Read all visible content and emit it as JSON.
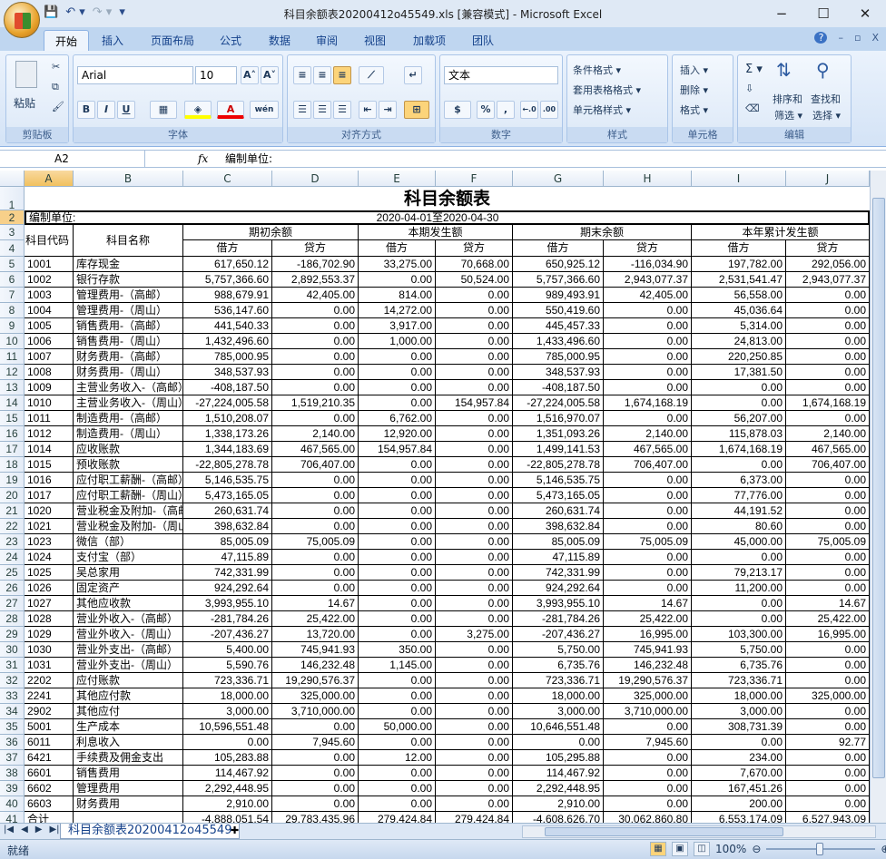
{
  "window": {
    "title": "科目余额表20200412o45549.xls  [兼容模式] - Microsoft Excel",
    "minimize": "−",
    "maximize": "☐",
    "close": "✕"
  },
  "qat": {
    "save": "💾",
    "undo": "↶ ▾",
    "redo": "↷ ▾",
    "customize": "▾"
  },
  "ribbon_tabs": [
    "开始",
    "插入",
    "页面布局",
    "公式",
    "数据",
    "审阅",
    "视图",
    "加载项",
    "团队"
  ],
  "ribbon_right": {
    "help": "?",
    "minimize": "–",
    "restore": "▫",
    "close": "X"
  },
  "ribbon": {
    "clipboard": {
      "label": "剪贴板",
      "paste": "粘贴"
    },
    "font": {
      "label": "字体",
      "name": "Arial",
      "size": "10",
      "bold": "B",
      "italic": "I",
      "underline": "U",
      "grow": "A˄",
      "shrink": "A˅",
      "font_color": "A",
      "phonetic": "wén"
    },
    "alignment": {
      "label": "对齐方式"
    },
    "number": {
      "label": "数字",
      "format": "文本",
      "percent": "%",
      "comma": ",",
      "inc_decimal": "←.0",
      "dec_decimal": ".00"
    },
    "styles": {
      "label": "样式",
      "conditional": "条件格式 ▾",
      "table": "套用表格格式 ▾",
      "cell": "单元格样式 ▾"
    },
    "cells": {
      "label": "单元格",
      "insert": "插入 ▾",
      "delete": "删除 ▾",
      "format": "格式 ▾"
    },
    "editing": {
      "label": "编辑",
      "sum": "Σ ▾",
      "sort": "排序和\n筛选 ▾",
      "sort1": "排序和",
      "sort2": "筛选 ▾",
      "find1": "查找和",
      "find2": "选择 ▾"
    }
  },
  "formula_bar": {
    "name_box": "A2",
    "fx": "fx",
    "value": "编制单位:"
  },
  "columns": [
    "A",
    "B",
    "C",
    "D",
    "E",
    "F",
    "G",
    "H",
    "I",
    "J"
  ],
  "sheet": {
    "title": "科目余额表",
    "unit_label": "编制单位:",
    "period": "2020-04-01至2020-04-30",
    "hdr_code": "科目代码",
    "hdr_name": "科目名称",
    "groups": [
      "期初余额",
      "本期发生额",
      "期末余额",
      "本年累计发生额"
    ],
    "sub": [
      "借方",
      "贷方",
      "借方",
      "贷方",
      "借方",
      "贷方",
      "借方",
      "贷方"
    ],
    "rows": [
      [
        "1001",
        "库存现金",
        "617,650.12",
        "-186,702.90",
        "33,275.00",
        "70,668.00",
        "650,925.12",
        "-116,034.90",
        "197,782.00",
        "292,056.00"
      ],
      [
        "1002",
        "银行存款",
        "5,757,366.60",
        "2,892,553.37",
        "0.00",
        "50,524.00",
        "5,757,366.60",
        "2,943,077.37",
        "2,531,541.47",
        "2,943,077.37"
      ],
      [
        "1003",
        "管理费用-（高邮）",
        "988,679.91",
        "42,405.00",
        "814.00",
        "0.00",
        "989,493.91",
        "42,405.00",
        "56,558.00",
        "0.00"
      ],
      [
        "1004",
        "管理费用-（周山）",
        "536,147.60",
        "0.00",
        "14,272.00",
        "0.00",
        "550,419.60",
        "0.00",
        "45,036.64",
        "0.00"
      ],
      [
        "1005",
        "销售费用-（高邮）",
        "441,540.33",
        "0.00",
        "3,917.00",
        "0.00",
        "445,457.33",
        "0.00",
        "5,314.00",
        "0.00"
      ],
      [
        "1006",
        "销售费用-（周山）",
        "1,432,496.60",
        "0.00",
        "1,000.00",
        "0.00",
        "1,433,496.60",
        "0.00",
        "24,813.00",
        "0.00"
      ],
      [
        "1007",
        "财务费用-（高邮）",
        "785,000.95",
        "0.00",
        "0.00",
        "0.00",
        "785,000.95",
        "0.00",
        "220,250.85",
        "0.00"
      ],
      [
        "1008",
        "财务费用-（周山）",
        "348,537.93",
        "0.00",
        "0.00",
        "0.00",
        "348,537.93",
        "0.00",
        "17,381.50",
        "0.00"
      ],
      [
        "1009",
        "主营业务收入-（高邮）",
        "-408,187.50",
        "0.00",
        "0.00",
        "0.00",
        "-408,187.50",
        "0.00",
        "0.00",
        "0.00"
      ],
      [
        "1010",
        "主营业务收入-（周山）",
        "-27,224,005.58",
        "1,519,210.35",
        "0.00",
        "154,957.84",
        "-27,224,005.58",
        "1,674,168.19",
        "0.00",
        "1,674,168.19"
      ],
      [
        "1011",
        "制造费用-（高邮）",
        "1,510,208.07",
        "0.00",
        "6,762.00",
        "0.00",
        "1,516,970.07",
        "0.00",
        "56,207.00",
        "0.00"
      ],
      [
        "1012",
        "制造费用-（周山）",
        "1,338,173.26",
        "2,140.00",
        "12,920.00",
        "0.00",
        "1,351,093.26",
        "2,140.00",
        "115,878.03",
        "2,140.00"
      ],
      [
        "1014",
        "应收账款",
        "1,344,183.69",
        "467,565.00",
        "154,957.84",
        "0.00",
        "1,499,141.53",
        "467,565.00",
        "1,674,168.19",
        "467,565.00"
      ],
      [
        "1015",
        "预收账款",
        "-22,805,278.78",
        "706,407.00",
        "0.00",
        "0.00",
        "-22,805,278.78",
        "706,407.00",
        "0.00",
        "706,407.00"
      ],
      [
        "1016",
        "应付职工薪酬-（高邮）",
        "5,146,535.75",
        "0.00",
        "0.00",
        "0.00",
        "5,146,535.75",
        "0.00",
        "6,373.00",
        "0.00"
      ],
      [
        "1017",
        "应付职工薪酬-（周山）",
        "5,473,165.05",
        "0.00",
        "0.00",
        "0.00",
        "5,473,165.05",
        "0.00",
        "77,776.00",
        "0.00"
      ],
      [
        "1020",
        "营业税金及附加-（高邮）",
        "260,631.74",
        "0.00",
        "0.00",
        "0.00",
        "260,631.74",
        "0.00",
        "44,191.52",
        "0.00"
      ],
      [
        "1021",
        "营业税金及附加-（周山）",
        "398,632.84",
        "0.00",
        "0.00",
        "0.00",
        "398,632.84",
        "0.00",
        "80.60",
        "0.00"
      ],
      [
        "1023",
        "微信（部）",
        "85,005.09",
        "75,005.09",
        "0.00",
        "0.00",
        "85,005.09",
        "75,005.09",
        "45,000.00",
        "75,005.09"
      ],
      [
        "1024",
        "支付宝（部）",
        "47,115.89",
        "0.00",
        "0.00",
        "0.00",
        "47,115.89",
        "0.00",
        "0.00",
        "0.00"
      ],
      [
        "1025",
        "吴总家用",
        "742,331.99",
        "0.00",
        "0.00",
        "0.00",
        "742,331.99",
        "0.00",
        "79,213.17",
        "0.00"
      ],
      [
        "1026",
        "固定资产",
        "924,292.64",
        "0.00",
        "0.00",
        "0.00",
        "924,292.64",
        "0.00",
        "11,200.00",
        "0.00"
      ],
      [
        "1027",
        "其他应收款",
        "3,993,955.10",
        "14.67",
        "0.00",
        "0.00",
        "3,993,955.10",
        "14.67",
        "0.00",
        "14.67"
      ],
      [
        "1028",
        "营业外收入-（高邮）",
        "-281,784.26",
        "25,422.00",
        "0.00",
        "0.00",
        "-281,784.26",
        "25,422.00",
        "0.00",
        "25,422.00"
      ],
      [
        "1029",
        "营业外收入-（周山）",
        "-207,436.27",
        "13,720.00",
        "0.00",
        "3,275.00",
        "-207,436.27",
        "16,995.00",
        "103,300.00",
        "16,995.00"
      ],
      [
        "1030",
        "营业外支出-（高邮）",
        "5,400.00",
        "745,941.93",
        "350.00",
        "0.00",
        "5,750.00",
        "745,941.93",
        "5,750.00",
        "0.00"
      ],
      [
        "1031",
        "营业外支出-（周山）",
        "5,590.76",
        "146,232.48",
        "1,145.00",
        "0.00",
        "6,735.76",
        "146,232.48",
        "6,735.76",
        "0.00"
      ],
      [
        "2202",
        "应付账款",
        "723,336.71",
        "19,290,576.37",
        "0.00",
        "0.00",
        "723,336.71",
        "19,290,576.37",
        "723,336.71",
        "0.00"
      ],
      [
        "2241",
        "其他应付款",
        "18,000.00",
        "325,000.00",
        "0.00",
        "0.00",
        "18,000.00",
        "325,000.00",
        "18,000.00",
        "325,000.00"
      ],
      [
        "2902",
        "其他应付",
        "3,000.00",
        "3,710,000.00",
        "0.00",
        "0.00",
        "3,000.00",
        "3,710,000.00",
        "3,000.00",
        "0.00"
      ],
      [
        "5001",
        "生产成本",
        "10,596,551.48",
        "0.00",
        "50,000.00",
        "0.00",
        "10,646,551.48",
        "0.00",
        "308,731.39",
        "0.00"
      ],
      [
        "6011",
        "利息收入",
        "0.00",
        "7,945.60",
        "0.00",
        "0.00",
        "0.00",
        "7,945.60",
        "0.00",
        "92.77"
      ],
      [
        "6421",
        "手续费及佣金支出",
        "105,283.88",
        "0.00",
        "12.00",
        "0.00",
        "105,295.88",
        "0.00",
        "234.00",
        "0.00"
      ],
      [
        "6601",
        "销售费用",
        "114,467.92",
        "0.00",
        "0.00",
        "0.00",
        "114,467.92",
        "0.00",
        "7,670.00",
        "0.00"
      ],
      [
        "6602",
        "管理费用",
        "2,292,448.95",
        "0.00",
        "0.00",
        "0.00",
        "2,292,448.95",
        "0.00",
        "167,451.26",
        "0.00"
      ],
      [
        "6603",
        "财务费用",
        "2,910.00",
        "0.00",
        "0.00",
        "0.00",
        "2,910.00",
        "0.00",
        "200.00",
        "0.00"
      ],
      [
        "合计",
        "",
        "-4,888,051.54",
        "29,783,435.96",
        "279,424.84",
        "279,424.84",
        "-4,608,626.70",
        "30,062,860.80",
        "6,553,174.09",
        "6,527,943.09"
      ]
    ]
  },
  "sheet_tabs": {
    "active": "科目余额表20200412o45549",
    "nav": [
      "|◀",
      "◀",
      "▶",
      "▶|"
    ]
  },
  "status": {
    "ready": "就绪",
    "zoom": "100%"
  }
}
